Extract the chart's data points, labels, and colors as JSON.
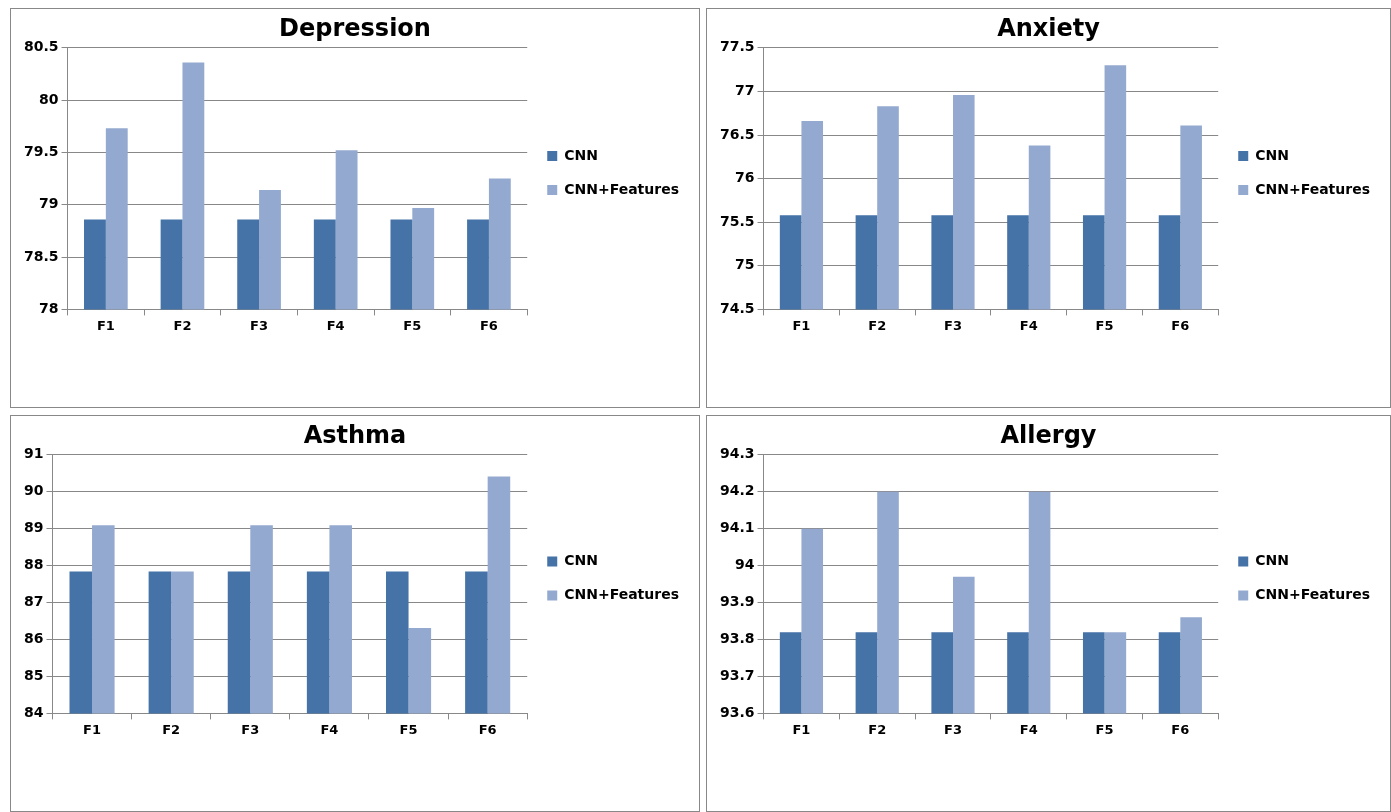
{
  "chart_data": [
    {
      "type": "bar",
      "title": "Depression",
      "categories": [
        "F1",
        "F2",
        "F3",
        "F4",
        "F5",
        "F6"
      ],
      "series": [
        {
          "name": "CNN",
          "color": "#4572a7",
          "values": [
            78.86,
            78.86,
            78.86,
            78.86,
            78.86,
            78.86
          ]
        },
        {
          "name": "CNN+Features",
          "color": "#93a9cf",
          "values": [
            79.73,
            80.36,
            79.14,
            79.52,
            78.97,
            79.25
          ]
        }
      ],
      "ylim": [
        78,
        80.5
      ],
      "yticks": [
        78,
        78.5,
        79,
        79.5,
        80,
        80.5
      ],
      "grid": "y",
      "legend": "right"
    },
    {
      "type": "bar",
      "title": "Anxiety",
      "categories": [
        "F1",
        "F2",
        "F3",
        "F4",
        "F5",
        "F6"
      ],
      "series": [
        {
          "name": "CNN",
          "color": "#4572a7",
          "values": [
            75.58,
            75.58,
            75.58,
            75.58,
            75.58,
            75.58
          ]
        },
        {
          "name": "CNN+Features",
          "color": "#93a9cf",
          "values": [
            76.66,
            76.83,
            76.96,
            76.38,
            77.3,
            76.61
          ]
        }
      ],
      "ylim": [
        74.5,
        77.5
      ],
      "yticks": [
        74.5,
        75,
        75.5,
        76,
        76.5,
        77,
        77.5
      ],
      "grid": "y",
      "legend": "right"
    },
    {
      "type": "bar",
      "title": "Asthma",
      "categories": [
        "F1",
        "F2",
        "F3",
        "F4",
        "F5",
        "F6"
      ],
      "series": [
        {
          "name": "CNN",
          "color": "#4572a7",
          "values": [
            87.84,
            87.84,
            87.84,
            87.84,
            87.84,
            87.84
          ]
        },
        {
          "name": "CNN+Features",
          "color": "#93a9cf",
          "values": [
            89.09,
            87.84,
            89.09,
            89.09,
            86.31,
            90.41
          ]
        }
      ],
      "ylim": [
        84,
        91
      ],
      "yticks": [
        84,
        85,
        86,
        87,
        88,
        89,
        90,
        91
      ],
      "grid": "y",
      "legend": "right"
    },
    {
      "type": "bar",
      "title": "Allergy",
      "categories": [
        "F1",
        "F2",
        "F3",
        "F4",
        "F5",
        "F6"
      ],
      "series": [
        {
          "name": "CNN",
          "color": "#4572a7",
          "values": [
            93.82,
            93.82,
            93.82,
            93.82,
            93.82,
            93.82
          ]
        },
        {
          "name": "CNN+Features",
          "color": "#93a9cf",
          "values": [
            94.1,
            94.2,
            93.97,
            94.2,
            93.82,
            93.86
          ]
        }
      ],
      "ylim": [
        93.6,
        94.3
      ],
      "yticks": [
        93.6,
        93.7,
        93.8,
        93.9,
        94,
        94.1,
        94.2,
        94.3
      ],
      "grid": "y",
      "legend": "right"
    }
  ]
}
